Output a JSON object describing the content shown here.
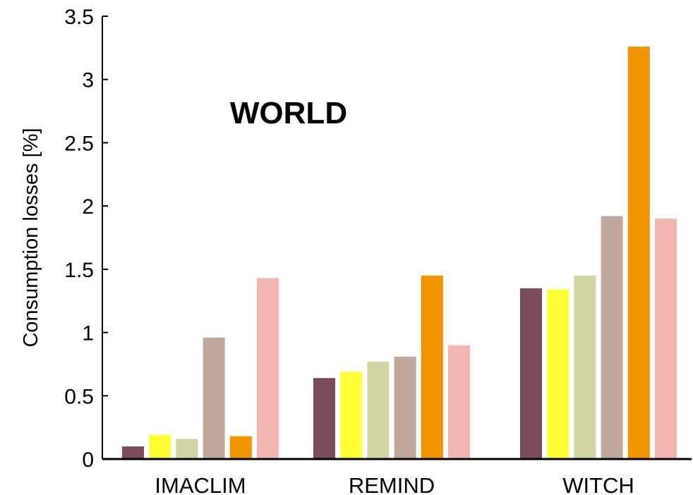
{
  "chart_data": {
    "type": "bar",
    "title": "",
    "annotation": "WORLD",
    "xlabel": "",
    "ylabel": "Consumption losses [%]",
    "ylim": [
      0,
      3.5
    ],
    "yticks": [
      0,
      0.5,
      1,
      1.5,
      2,
      2.5,
      3,
      3.5
    ],
    "ytick_labels": [
      "0",
      "0.5",
      "1",
      "1.5",
      "2",
      "2.5",
      "3",
      "3.5"
    ],
    "grid": false,
    "legend": "none",
    "categories": [
      "IMACLIM",
      "REMIND",
      "WITCH"
    ],
    "series": [
      {
        "color": "#7a4c5e",
        "values": [
          0.1,
          0.64,
          1.35
        ]
      },
      {
        "color": "#ffff33",
        "values": [
          0.19,
          0.69,
          1.34
        ]
      },
      {
        "color": "#d1d6a4",
        "values": [
          0.16,
          0.77,
          1.45
        ]
      },
      {
        "color": "#c0a99c",
        "values": [
          0.96,
          0.81,
          1.92
        ]
      },
      {
        "color": "#f09400",
        "values": [
          0.18,
          1.45,
          3.26
        ]
      },
      {
        "color": "#f4b6b0",
        "values": [
          1.43,
          0.9,
          1.9
        ]
      }
    ]
  }
}
